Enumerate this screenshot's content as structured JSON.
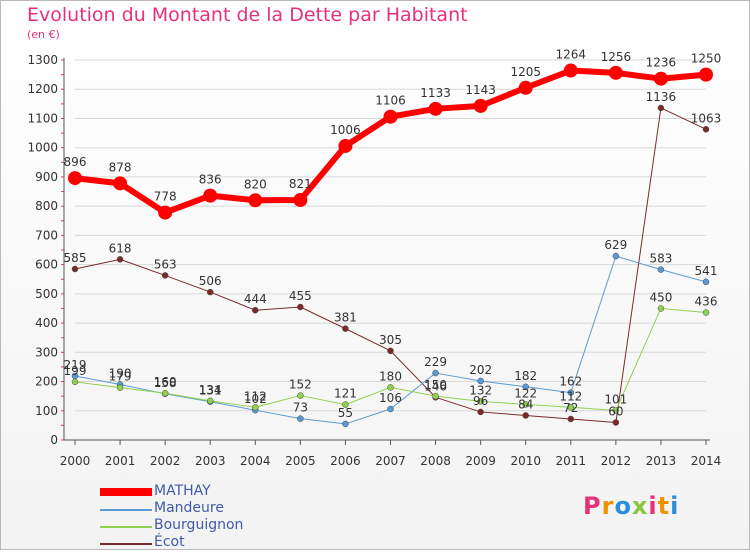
{
  "title": "Evolution du Montant de la Dette par Habitant",
  "unit": "(en €)",
  "colors": {
    "title": "#e8317b",
    "grid": "#d8d8d8",
    "axis": "#555555"
  },
  "logo": {
    "text": "Proxiti"
  },
  "chart_data": {
    "type": "line",
    "x": [
      "2000",
      "2001",
      "2002",
      "2003",
      "2004",
      "2005",
      "2006",
      "2007",
      "2008",
      "2009",
      "2010",
      "2011",
      "2012",
      "2013",
      "2014"
    ],
    "ylim": [
      0,
      1300
    ],
    "yticks": [
      0,
      100,
      200,
      300,
      400,
      500,
      600,
      700,
      800,
      900,
      1000,
      1100,
      1200,
      1300
    ],
    "grid": true,
    "legend_position": "bottom-left",
    "series": [
      {
        "name": "MATHAY",
        "color": "#ff0000",
        "width": 6,
        "values": [
          896,
          878,
          778,
          836,
          820,
          821,
          1006,
          1106,
          1133,
          1143,
          1205,
          1264,
          1256,
          1236,
          1250
        ]
      },
      {
        "name": "Mandeure",
        "color": "#5b9bd5",
        "width": 1,
        "values": [
          219,
          190,
          158,
          131,
          102,
          73,
          55,
          106,
          229,
          202,
          182,
          162,
          629,
          583,
          541
        ]
      },
      {
        "name": "Bourguignon",
        "color": "#92d050",
        "width": 1,
        "values": [
          199,
          179,
          160,
          134,
          112,
          152,
          121,
          180,
          150,
          132,
          122,
          112,
          101,
          450,
          436
        ]
      },
      {
        "name": "Écot",
        "color": "#7b2a2a",
        "width": 1,
        "values": [
          585,
          618,
          563,
          506,
          444,
          455,
          381,
          305,
          146,
          96,
          84,
          72,
          60,
          1136,
          1063
        ]
      }
    ]
  }
}
